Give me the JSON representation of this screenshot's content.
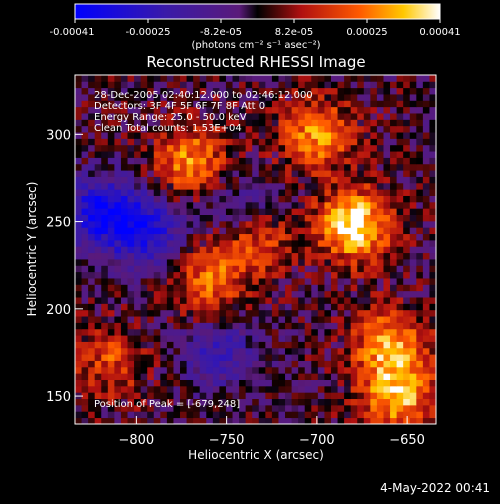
{
  "colorbar": {
    "ticks": [
      "-0.00041",
      "-0.00025",
      "-8.2e-05",
      "8.2e-05",
      "0.00025",
      "0.00041"
    ],
    "unit_label": "(photons cm⁻² s⁻¹ asec⁻²)",
    "vmin": -0.00041,
    "vmax": 0.00041
  },
  "info": {
    "time_range": "28-Dec-2005 02:40:12.000 to 02:46:12.000",
    "detectors": "Detectors: 3F 4F 5F 6F 7F 8F  Att 0",
    "energy": "Energy Range: 25.0 - 50.0 keV",
    "method": "Clean    Total counts: 1.53E+04",
    "peak": "Position of Peak = [-679,248]"
  },
  "footer": {
    "date": "4-May-2022 00:41"
  },
  "colors": {
    "background": "#000000",
    "text": "#ffffff"
  },
  "chart_data": {
    "type": "heatmap",
    "title": "Reconstructed RHESSI Image",
    "xlabel": "Heliocentric X (arcsec)",
    "ylabel": "Heliocentric Y (arcsec)",
    "xlim": [
      -834,
      -634
    ],
    "ylim": [
      134,
      334
    ],
    "xticks": [
      {
        "value": -800,
        "label": "−800"
      },
      {
        "value": -750,
        "label": "−750"
      },
      {
        "value": -700,
        "label": "−700"
      },
      {
        "value": -650,
        "label": "−650"
      }
    ],
    "yticks": [
      {
        "value": 150,
        "label": "150"
      },
      {
        "value": 200,
        "label": "200"
      },
      {
        "value": 250,
        "label": "250"
      },
      {
        "value": 300,
        "label": "300"
      }
    ],
    "colormap": "blue-purple-red-yellow-white",
    "peak": {
      "x": -679,
      "y": 248
    },
    "bright_sources": [
      {
        "x": -679,
        "y": 248,
        "value": 0.00041
      },
      {
        "x": -660,
        "y": 180,
        "value": 0.0003
      },
      {
        "x": -700,
        "y": 300,
        "value": 0.00028
      },
      {
        "x": -770,
        "y": 285,
        "value": 0.00026
      },
      {
        "x": -760,
        "y": 215,
        "value": 0.00022
      },
      {
        "x": -735,
        "y": 240,
        "value": 0.00025
      },
      {
        "x": -655,
        "y": 150,
        "value": 0.00032
      },
      {
        "x": -815,
        "y": 170,
        "value": 0.00018
      }
    ],
    "dim_sources": [
      {
        "x": -820,
        "y": 255,
        "value": -0.00035
      },
      {
        "x": -795,
        "y": 245,
        "value": -0.0003
      },
      {
        "x": -755,
        "y": 175,
        "value": -0.00022
      },
      {
        "x": -740,
        "y": 255,
        "value": -0.00018
      }
    ]
  }
}
